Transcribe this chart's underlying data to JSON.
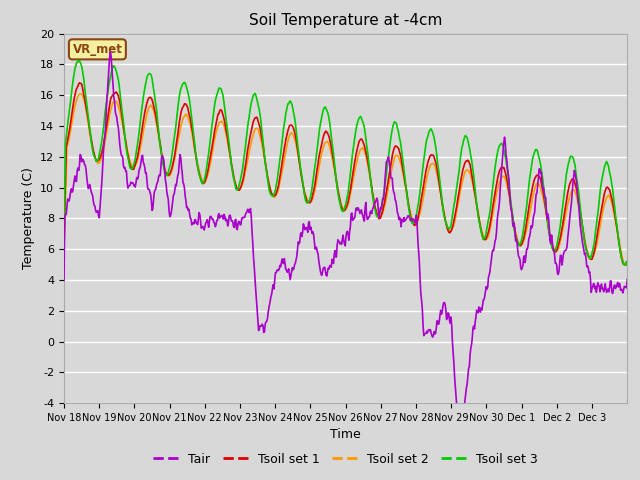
{
  "title": "Soil Temperature at -4cm",
  "xlabel": "Time",
  "ylabel": "Temperature (C)",
  "ylim": [
    -4,
    20
  ],
  "background_color": "#d8d8d8",
  "plot_bg_color": "#d8d8d8",
  "grid_color": "#ffffff",
  "annotation_text": "VR_met",
  "annotation_bg": "#f5f0a0",
  "annotation_border": "#8b4513",
  "line_colors": {
    "Tair": "#aa00cc",
    "Tsoil set 1": "#dd0000",
    "Tsoil set 2": "#ff9900",
    "Tsoil set 3": "#00cc00"
  },
  "line_widths": {
    "Tair": 1.2,
    "Tsoil set 1": 1.2,
    "Tsoil set 2": 1.2,
    "Tsoil set 3": 1.2
  },
  "xtick_labels": [
    "Nov 18",
    "Nov 19",
    "Nov 20",
    "Nov 21",
    "Nov 22",
    "Nov 23",
    "Nov 24",
    "Nov 25",
    "Nov 26",
    "Nov 27",
    "Nov 28",
    "Nov 29",
    "Nov 30",
    "Dec 1",
    "Dec 2",
    "Dec 3"
  ],
  "ytick_labels": [
    "-4",
    "-2",
    "0",
    "2",
    "4",
    "6",
    "8",
    "10",
    "12",
    "14",
    "16",
    "18",
    "20"
  ],
  "ytick_values": [
    -4,
    -2,
    0,
    2,
    4,
    6,
    8,
    10,
    12,
    14,
    16,
    18,
    20
  ],
  "num_days": 16,
  "figsize": [
    6.4,
    4.8
  ],
  "dpi": 100
}
